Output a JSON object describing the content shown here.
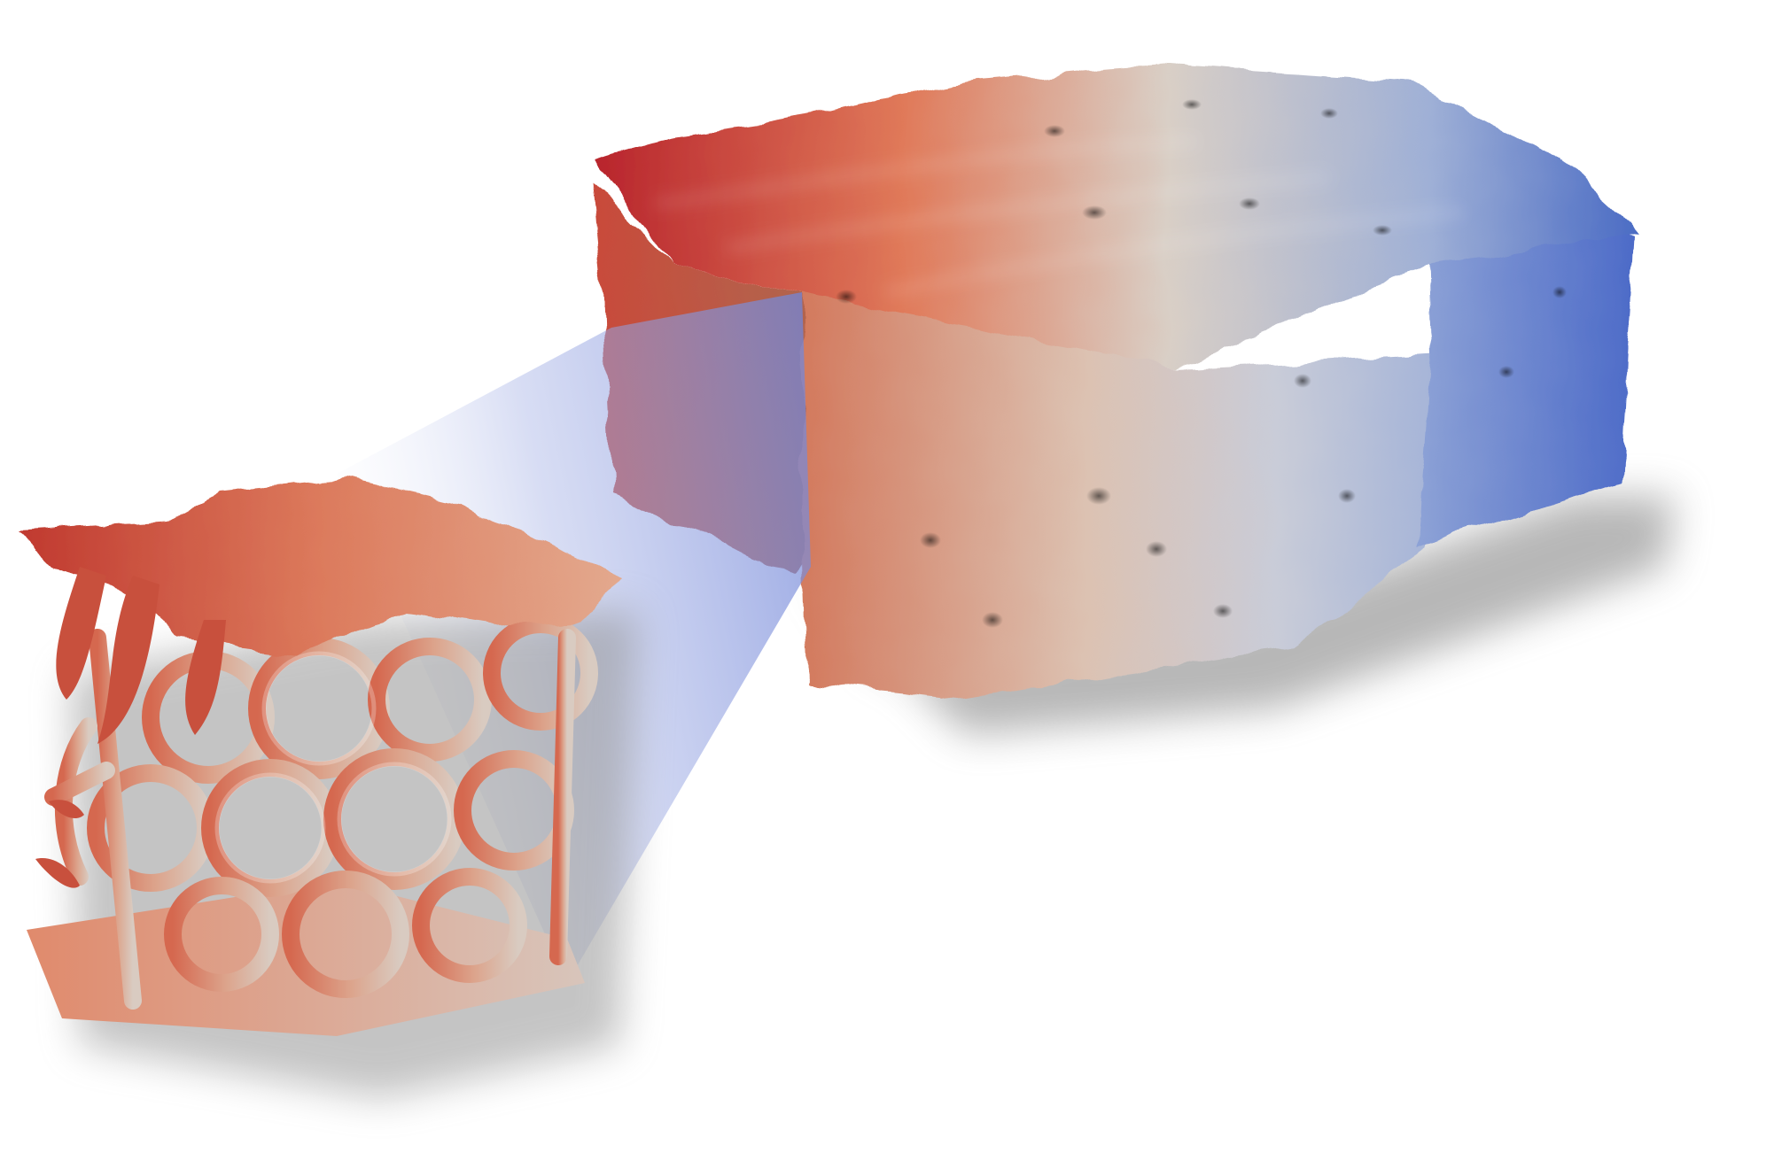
{
  "scene": {
    "colormap": {
      "hot": "#b8242c",
      "warm": "#e07a5a",
      "mid": "#d9cfc6",
      "cool": "#9fb0d6",
      "cold": "#4a6bc4"
    },
    "zoom_beam_color": "#8e9fe0",
    "shadow_color": "#8a8a8a",
    "objects": [
      {
        "name": "porous-material-block",
        "description_visible": false
      },
      {
        "name": "zoomed-lattice-subvolume",
        "description_visible": false
      }
    ]
  }
}
